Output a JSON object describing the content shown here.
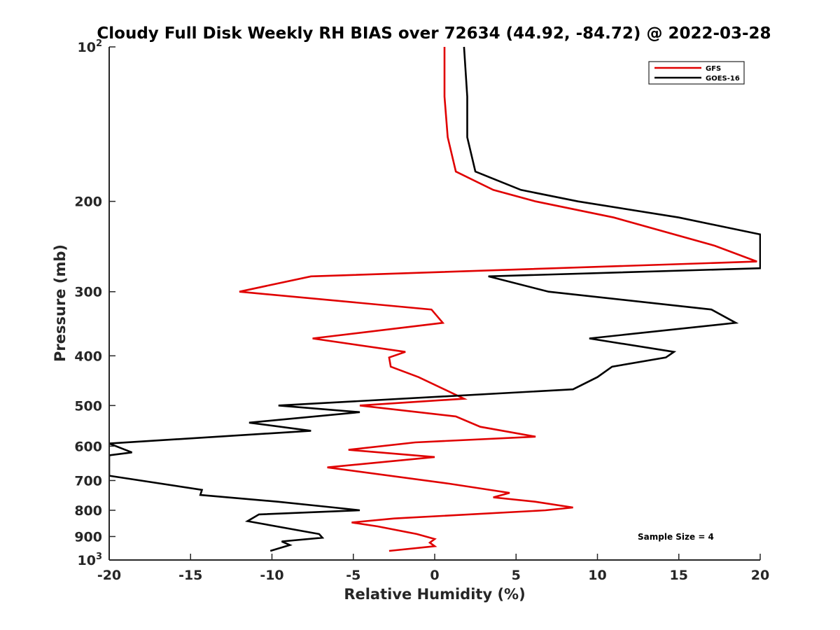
{
  "chart_data": {
    "type": "line",
    "title": "Cloudy Full Disk Weekly RH BIAS over 72634 (44.92, -84.72) @ 2022-03-28",
    "xlabel": "Relative Humidity (%)",
    "ylabel": "Pressure (mb)",
    "xlim": [
      -20,
      20
    ],
    "ylim": [
      100,
      1000
    ],
    "y_scale": "log",
    "y_reversed": true,
    "grid": false,
    "legend_position": "top-right",
    "x_ticks": [
      "-20",
      "-15",
      "-10",
      "-5",
      "0",
      "5",
      "10",
      "15",
      "20"
    ],
    "y_ticks": [
      {
        "value": 100,
        "base": "10",
        "exp": "2"
      },
      {
        "value": 200,
        "label": "200"
      },
      {
        "value": 300,
        "label": "300"
      },
      {
        "value": 400,
        "label": "400"
      },
      {
        "value": 500,
        "label": "500"
      },
      {
        "value": 600,
        "label": "600"
      },
      {
        "value": 700,
        "label": "700"
      },
      {
        "value": 800,
        "label": "800"
      },
      {
        "value": 900,
        "label": "900"
      },
      {
        "value": 1000,
        "base": "10",
        "exp": "3"
      }
    ],
    "series": [
      {
        "name": "GFS",
        "color": "#e00000",
        "points": [
          [
            0.6,
            100
          ],
          [
            0.6,
            125
          ],
          [
            0.8,
            150
          ],
          [
            1.3,
            175
          ],
          [
            3.6,
            190
          ],
          [
            6.2,
            200
          ],
          [
            11,
            215
          ],
          [
            17.2,
            244
          ],
          [
            19.8,
            262
          ],
          [
            -7.6,
            280
          ],
          [
            -12,
            300
          ],
          [
            -0.2,
            325
          ],
          [
            0.5,
            345
          ],
          [
            -7.5,
            370
          ],
          [
            -1.8,
            393
          ],
          [
            -2.8,
            403
          ],
          [
            -2.7,
            420
          ],
          [
            -1,
            440
          ],
          [
            1.8,
            485
          ],
          [
            -4.6,
            500
          ],
          [
            1.3,
            525
          ],
          [
            2.8,
            550
          ],
          [
            6.2,
            575
          ],
          [
            -1.2,
            590
          ],
          [
            -5.3,
            610
          ],
          [
            0,
            630
          ],
          [
            -6.6,
            660
          ],
          [
            0.9,
            710
          ],
          [
            4.6,
            740
          ],
          [
            3.6,
            755
          ],
          [
            6.2,
            770
          ],
          [
            8.5,
            790
          ],
          [
            6.8,
            800
          ],
          [
            -2.5,
            830
          ],
          [
            -5.1,
            845
          ],
          [
            -3.5,
            860
          ],
          [
            -1.1,
            890
          ],
          [
            0,
            910
          ],
          [
            -0.3,
            925
          ],
          [
            0,
            940
          ],
          [
            -2.8,
            960
          ]
        ]
      },
      {
        "name": "GOES-16",
        "color": "#000000",
        "points": [
          [
            1.8,
            100
          ],
          [
            2,
            125
          ],
          [
            2,
            150
          ],
          [
            2.5,
            175
          ],
          [
            5.3,
            190
          ],
          [
            8.8,
            200
          ],
          [
            15,
            215
          ],
          [
            20,
            232
          ],
          [
            20,
            270
          ],
          [
            3.3,
            280
          ],
          [
            7,
            300
          ],
          [
            17,
            325
          ],
          [
            18.5,
            345
          ],
          [
            9.5,
            370
          ],
          [
            14.7,
            393
          ],
          [
            14.2,
            403
          ],
          [
            10.9,
            420
          ],
          [
            10,
            440
          ],
          [
            8.5,
            465
          ],
          [
            -9.6,
            500
          ],
          [
            -4.6,
            515
          ],
          [
            -11.4,
            540
          ],
          [
            -7.6,
            560
          ],
          [
            -20,
            593
          ],
          [
            -18.6,
            617
          ],
          [
            -20,
            625
          ],
          [
            -20,
            685
          ],
          [
            -14.3,
            730
          ],
          [
            -14.4,
            747
          ],
          [
            -9.6,
            770
          ],
          [
            -6.2,
            790
          ],
          [
            -4.6,
            800
          ],
          [
            -10.8,
            815
          ],
          [
            -11.5,
            840
          ],
          [
            -7.1,
            890
          ],
          [
            -6.9,
            905
          ],
          [
            -9.4,
            920
          ],
          [
            -8.9,
            935
          ],
          [
            -10.1,
            960
          ]
        ]
      }
    ],
    "annotations": [
      "Sample Size = 4"
    ]
  }
}
